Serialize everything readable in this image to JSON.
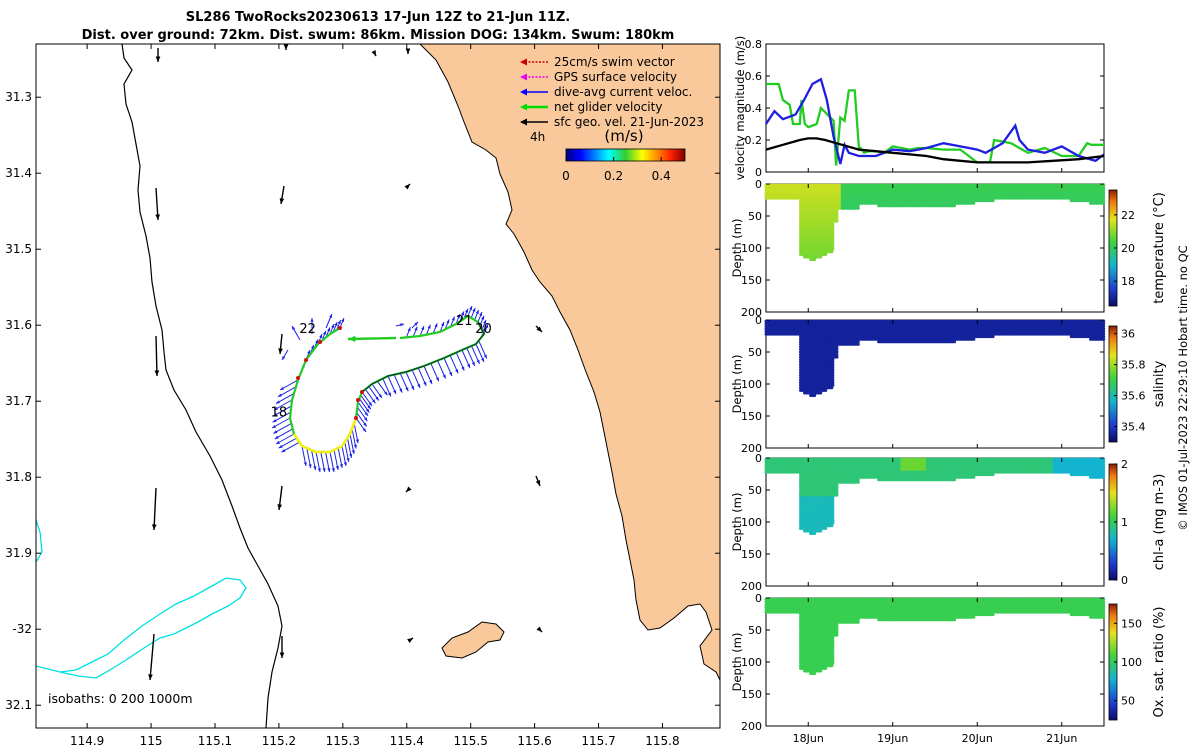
{
  "title": {
    "line1": "SL286 TwoRocks20230613 17-Jun 12Z to 21-Jun 11Z.",
    "line2": "Dist. over ground: 72km. Dist. swum: 86km. Mission DOG: 134km. Swum: 180km"
  },
  "map": {
    "xticks": [
      114.9,
      115,
      115.1,
      115.2,
      115.3,
      115.4,
      115.5,
      115.6,
      115.7,
      115.8
    ],
    "xtick_labels": [
      "114.9",
      "115",
      "115.1",
      "115.2",
      "115.3",
      "115.4",
      "115.5",
      "115.6",
      "115.7",
      "115.8"
    ],
    "yticks": [
      -31.3,
      -31.4,
      -31.5,
      -31.6,
      -31.7,
      -31.8,
      -31.9,
      -32,
      -32.1
    ],
    "ytick_labels": [
      "31.3",
      "31.4",
      "31.5",
      "31.6",
      "31.7",
      "31.8",
      "31.9",
      "-32",
      "32.1"
    ],
    "xlim": [
      114.82,
      115.89
    ],
    "ylim": [
      -32.13,
      -31.23
    ],
    "legend": [
      {
        "label": "25cm/s swim vector",
        "color": "#cc0000"
      },
      {
        "label": "GPS surface velocity",
        "color": "#ee00ee"
      },
      {
        "label": "dive-avg current veloc.",
        "color": "#0000ff"
      },
      {
        "label": "net glider velocity",
        "color": "#00dd00"
      },
      {
        "label": "sfc geo. vel. 21-Jun-2023",
        "color": "#000000"
      }
    ],
    "legend_note": "4h",
    "colorbar": {
      "title": "(m/s)",
      "ticks": [
        0,
        0.2,
        0.4
      ],
      "tick_labels": [
        "0",
        "0.2",
        "0.4"
      ],
      "range": [
        0,
        0.5
      ]
    },
    "day_labels": [
      {
        "text": "18",
        "lon": 115.2,
        "lat": -31.72
      },
      {
        "text": "22",
        "lon": 115.245,
        "lat": -31.61
      },
      {
        "text": "21",
        "lon": 115.49,
        "lat": -31.6
      },
      {
        "text": "20",
        "lon": 115.52,
        "lat": -31.61
      }
    ],
    "isobath_note": "isobaths: 0   200  1000m",
    "colors": {
      "land": "#f9c89b",
      "isobath_200": "#00e0e0",
      "isobath_1000": "#000000"
    }
  },
  "velocity_panel": {
    "ylabel": "velocity magnitude (m/s)",
    "yticks": [
      0,
      0.2,
      0.4,
      0.6,
      0.8
    ],
    "ytick_labels": [
      "0",
      "0.2",
      "0.4",
      "0.6",
      "0.8"
    ],
    "ylim": [
      0,
      0.8
    ],
    "xlim": [
      17.5,
      21.5
    ],
    "series": [
      {
        "name": "net glider velocity",
        "color": "#22cc22",
        "x": [
          17.5,
          17.65,
          17.7,
          17.78,
          17.82,
          17.9,
          17.92,
          17.96,
          18.0,
          18.1,
          18.15,
          18.3,
          18.33,
          18.38,
          18.43,
          18.48,
          18.55,
          18.6,
          18.62,
          18.66,
          18.72,
          18.8,
          18.9,
          19.0,
          19.1,
          19.2,
          19.3,
          19.4,
          19.6,
          19.8,
          20.0,
          20.15,
          20.2,
          20.4,
          20.6,
          20.8,
          21.0,
          21.2,
          21.3,
          21.35,
          21.5
        ],
        "y": [
          0.55,
          0.55,
          0.45,
          0.42,
          0.3,
          0.3,
          0.45,
          0.3,
          0.28,
          0.3,
          0.4,
          0.32,
          0.04,
          0.34,
          0.32,
          0.51,
          0.51,
          0.15,
          0.15,
          0.12,
          0.13,
          0.13,
          0.12,
          0.16,
          0.15,
          0.14,
          0.15,
          0.15,
          0.14,
          0.14,
          0.06,
          0.06,
          0.2,
          0.18,
          0.12,
          0.15,
          0.1,
          0.1,
          0.18,
          0.17,
          0.17
        ]
      },
      {
        "name": "dive-avg current veloc.",
        "color": "#1f1fe0",
        "x": [
          17.5,
          17.6,
          17.7,
          17.85,
          17.95,
          18.05,
          18.15,
          18.22,
          18.3,
          18.38,
          18.43,
          18.48,
          18.6,
          18.8,
          19.0,
          19.2,
          19.4,
          19.6,
          19.8,
          20.0,
          20.1,
          20.3,
          20.45,
          20.5,
          20.6,
          20.8,
          21.0,
          21.2,
          21.4,
          21.5
        ],
        "y": [
          0.3,
          0.38,
          0.33,
          0.36,
          0.45,
          0.55,
          0.58,
          0.45,
          0.22,
          0.05,
          0.17,
          0.12,
          0.1,
          0.1,
          0.14,
          0.13,
          0.15,
          0.18,
          0.16,
          0.14,
          0.12,
          0.18,
          0.29,
          0.2,
          0.14,
          0.12,
          0.16,
          0.1,
          0.07,
          0.11
        ]
      },
      {
        "name": "sfc geo. vel.",
        "color": "#000000",
        "x": [
          17.5,
          17.7,
          17.9,
          18.0,
          18.1,
          18.2,
          18.4,
          18.6,
          18.8,
          19.0,
          19.2,
          19.4,
          19.6,
          19.8,
          20.0,
          20.3,
          20.6,
          20.9,
          21.2,
          21.5
        ],
        "y": [
          0.14,
          0.17,
          0.2,
          0.21,
          0.21,
          0.2,
          0.17,
          0.14,
          0.13,
          0.12,
          0.11,
          0.1,
          0.08,
          0.07,
          0.06,
          0.06,
          0.06,
          0.07,
          0.08,
          0.1
        ]
      }
    ]
  },
  "profile_panels": [
    {
      "name": "temperature",
      "ylabel": "Depth (m)",
      "cblabel": "temperature (°C)",
      "cbticks": [
        18,
        20,
        22
      ],
      "cbtick_labels": [
        "18",
        "20",
        "22"
      ],
      "cbrange": [
        16.5,
        23.5
      ]
    },
    {
      "name": "salinity",
      "ylabel": "Depth (m)",
      "cblabel": "salinity",
      "cbticks": [
        35.4,
        35.6,
        35.8,
        36
      ],
      "cbtick_labels": [
        "35.4",
        "35.6",
        "35.8",
        "36"
      ],
      "cbrange": [
        35.3,
        36.05
      ]
    },
    {
      "name": "chl-a",
      "ylabel": "Depth (m)",
      "cblabel": "chl-a (mg m-3)",
      "cbticks": [
        0,
        1,
        2
      ],
      "cbtick_labels": [
        "0",
        "1",
        "2"
      ],
      "cbrange": [
        0,
        2
      ]
    },
    {
      "name": "oxygen",
      "ylabel": "Depth (m)",
      "cblabel": "Ox. sat. ratio (%)",
      "cbticks": [
        50,
        100,
        150
      ],
      "cbtick_labels": [
        "50",
        "100",
        "150"
      ],
      "cbrange": [
        25,
        175
      ]
    }
  ],
  "profile_yticks": [
    0,
    50,
    100,
    150,
    200
  ],
  "profile_ytick_labels": [
    "0",
    "50",
    "100",
    "150",
    "200"
  ],
  "time_axis": {
    "ticks": [
      18,
      19,
      20,
      21
    ],
    "tick_labels": [
      "18Jun",
      "19Jun",
      "20Jun",
      "21Jun"
    ]
  },
  "footer": "© IMOS 01-Jul-2023 22:29:10 Hobart time. no QC"
}
